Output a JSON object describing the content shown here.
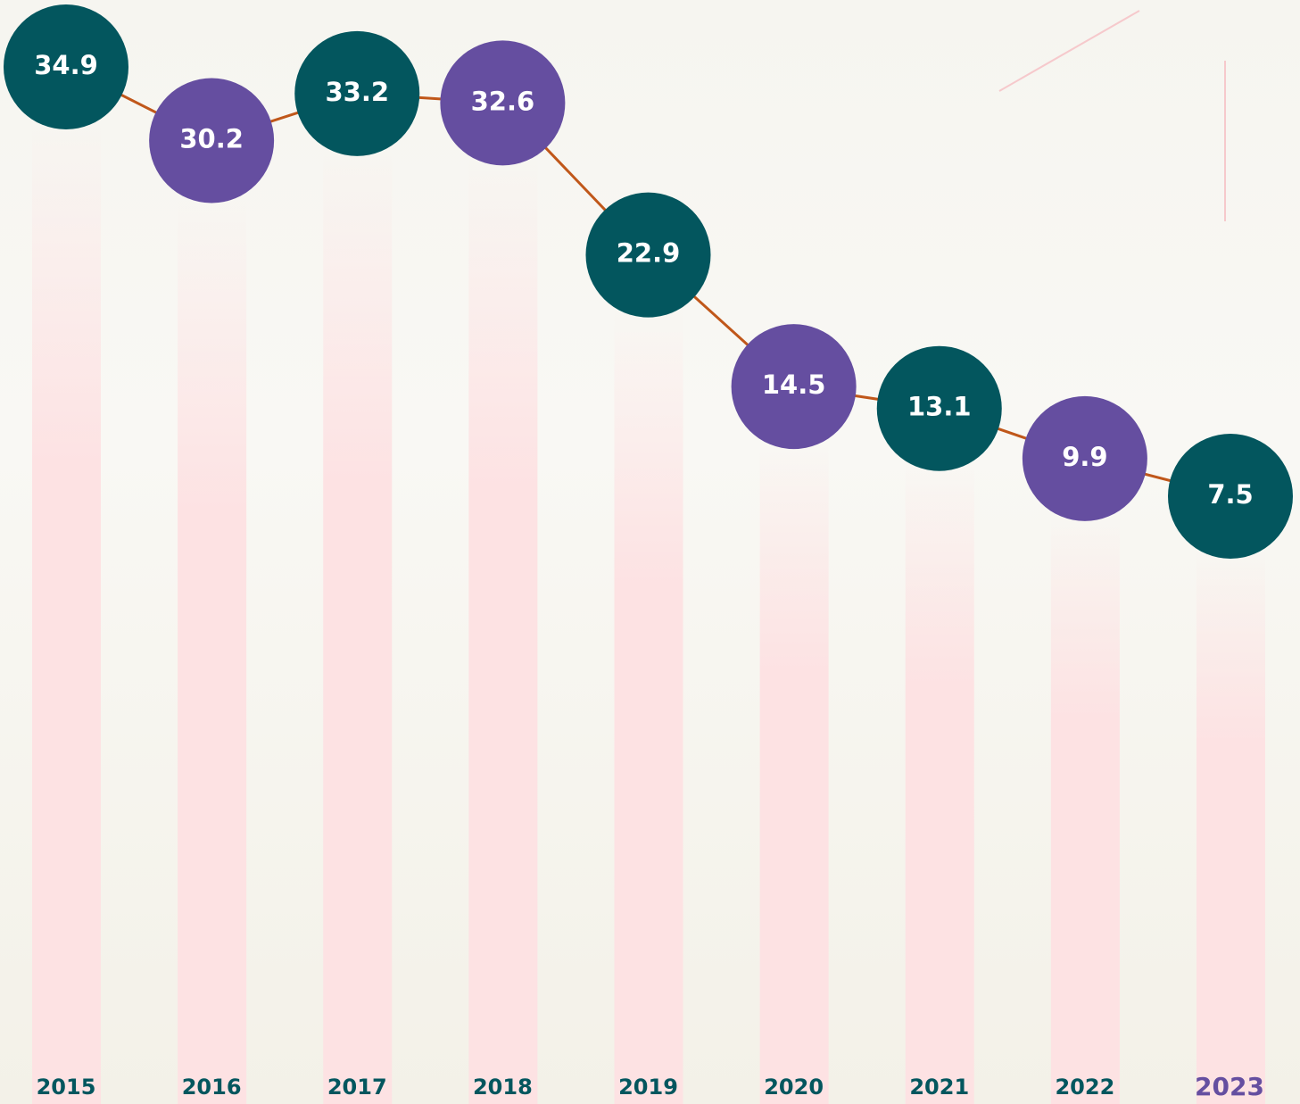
{
  "chart_data": {
    "type": "line",
    "categories": [
      "2015",
      "2016",
      "2017",
      "2018",
      "2019",
      "2020",
      "2021",
      "2022",
      "2023"
    ],
    "values": [
      34.9,
      30.2,
      33.2,
      32.6,
      22.9,
      14.5,
      13.1,
      9.9,
      7.5
    ],
    "line_color": "#c0571a",
    "point_colors": [
      "#03565e",
      "#654ea0",
      "#03565e",
      "#654ea0",
      "#03565e",
      "#654ea0",
      "#03565e",
      "#654ea0",
      "#03565e"
    ],
    "category_colors": [
      "#03565e",
      "#03565e",
      "#03565e",
      "#03565e",
      "#03565e",
      "#03565e",
      "#03565e",
      "#03565e",
      "#654ea0"
    ]
  }
}
